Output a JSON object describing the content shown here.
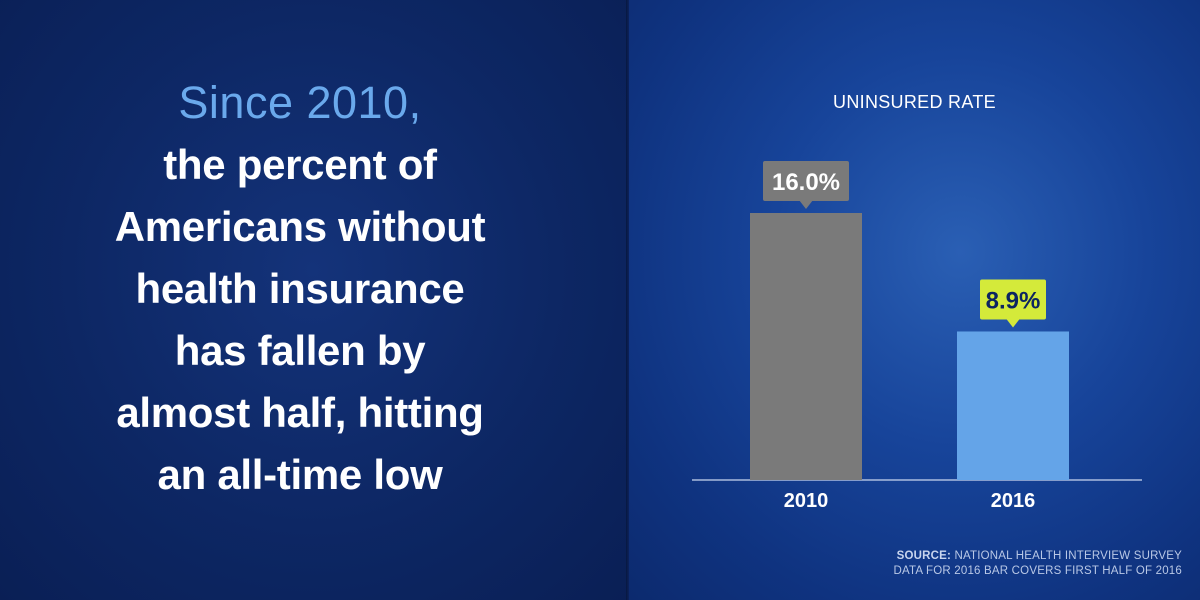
{
  "headline": {
    "lead": "Since 2010,",
    "lines": [
      "the percent of",
      "Americans without",
      "health insurance",
      "has fallen by",
      "almost half, hitting",
      "an all-time low"
    ]
  },
  "chart_data": {
    "type": "bar",
    "title": "UNINSURED RATE",
    "categories": [
      "2010",
      "2016"
    ],
    "values": [
      16.0,
      8.9
    ],
    "value_labels": [
      "16.0%",
      "8.9%"
    ],
    "bar_colors": [
      "#7a7a7a",
      "#64a4e8"
    ],
    "label_colors": [
      "#7a7a7a",
      "#d4ea3a"
    ],
    "label_text_colors": [
      "#ffffff",
      "#0c2461"
    ],
    "ylim": [
      0,
      16.0
    ],
    "grid": false,
    "legend": "none"
  },
  "source": {
    "label": "SOURCE:",
    "text": "NATIONAL HEALTH INTERVIEW SURVEY",
    "note": "DATA FOR 2016 BAR COVERS FIRST HALF OF 2016"
  }
}
